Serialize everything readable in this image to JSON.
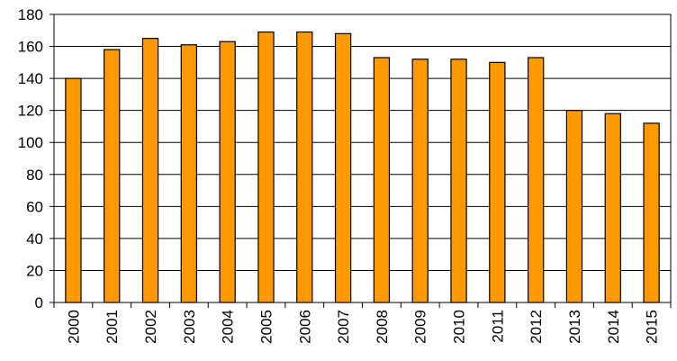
{
  "chart_data": {
    "type": "bar",
    "categories": [
      "2000",
      "2001",
      "2002",
      "2003",
      "2004",
      "2005",
      "2006",
      "2007",
      "2008",
      "2009",
      "2010",
      "2011",
      "2012",
      "2013",
      "2014",
      "2015"
    ],
    "values": [
      140,
      158,
      165,
      161,
      163,
      169,
      169,
      168,
      153,
      152,
      152,
      150,
      153,
      120,
      118,
      112
    ],
    "color": "#ff9900",
    "ylim": [
      0,
      180
    ],
    "yticks": [
      0,
      20,
      40,
      60,
      80,
      100,
      120,
      140,
      160,
      180
    ],
    "grid": true
  }
}
